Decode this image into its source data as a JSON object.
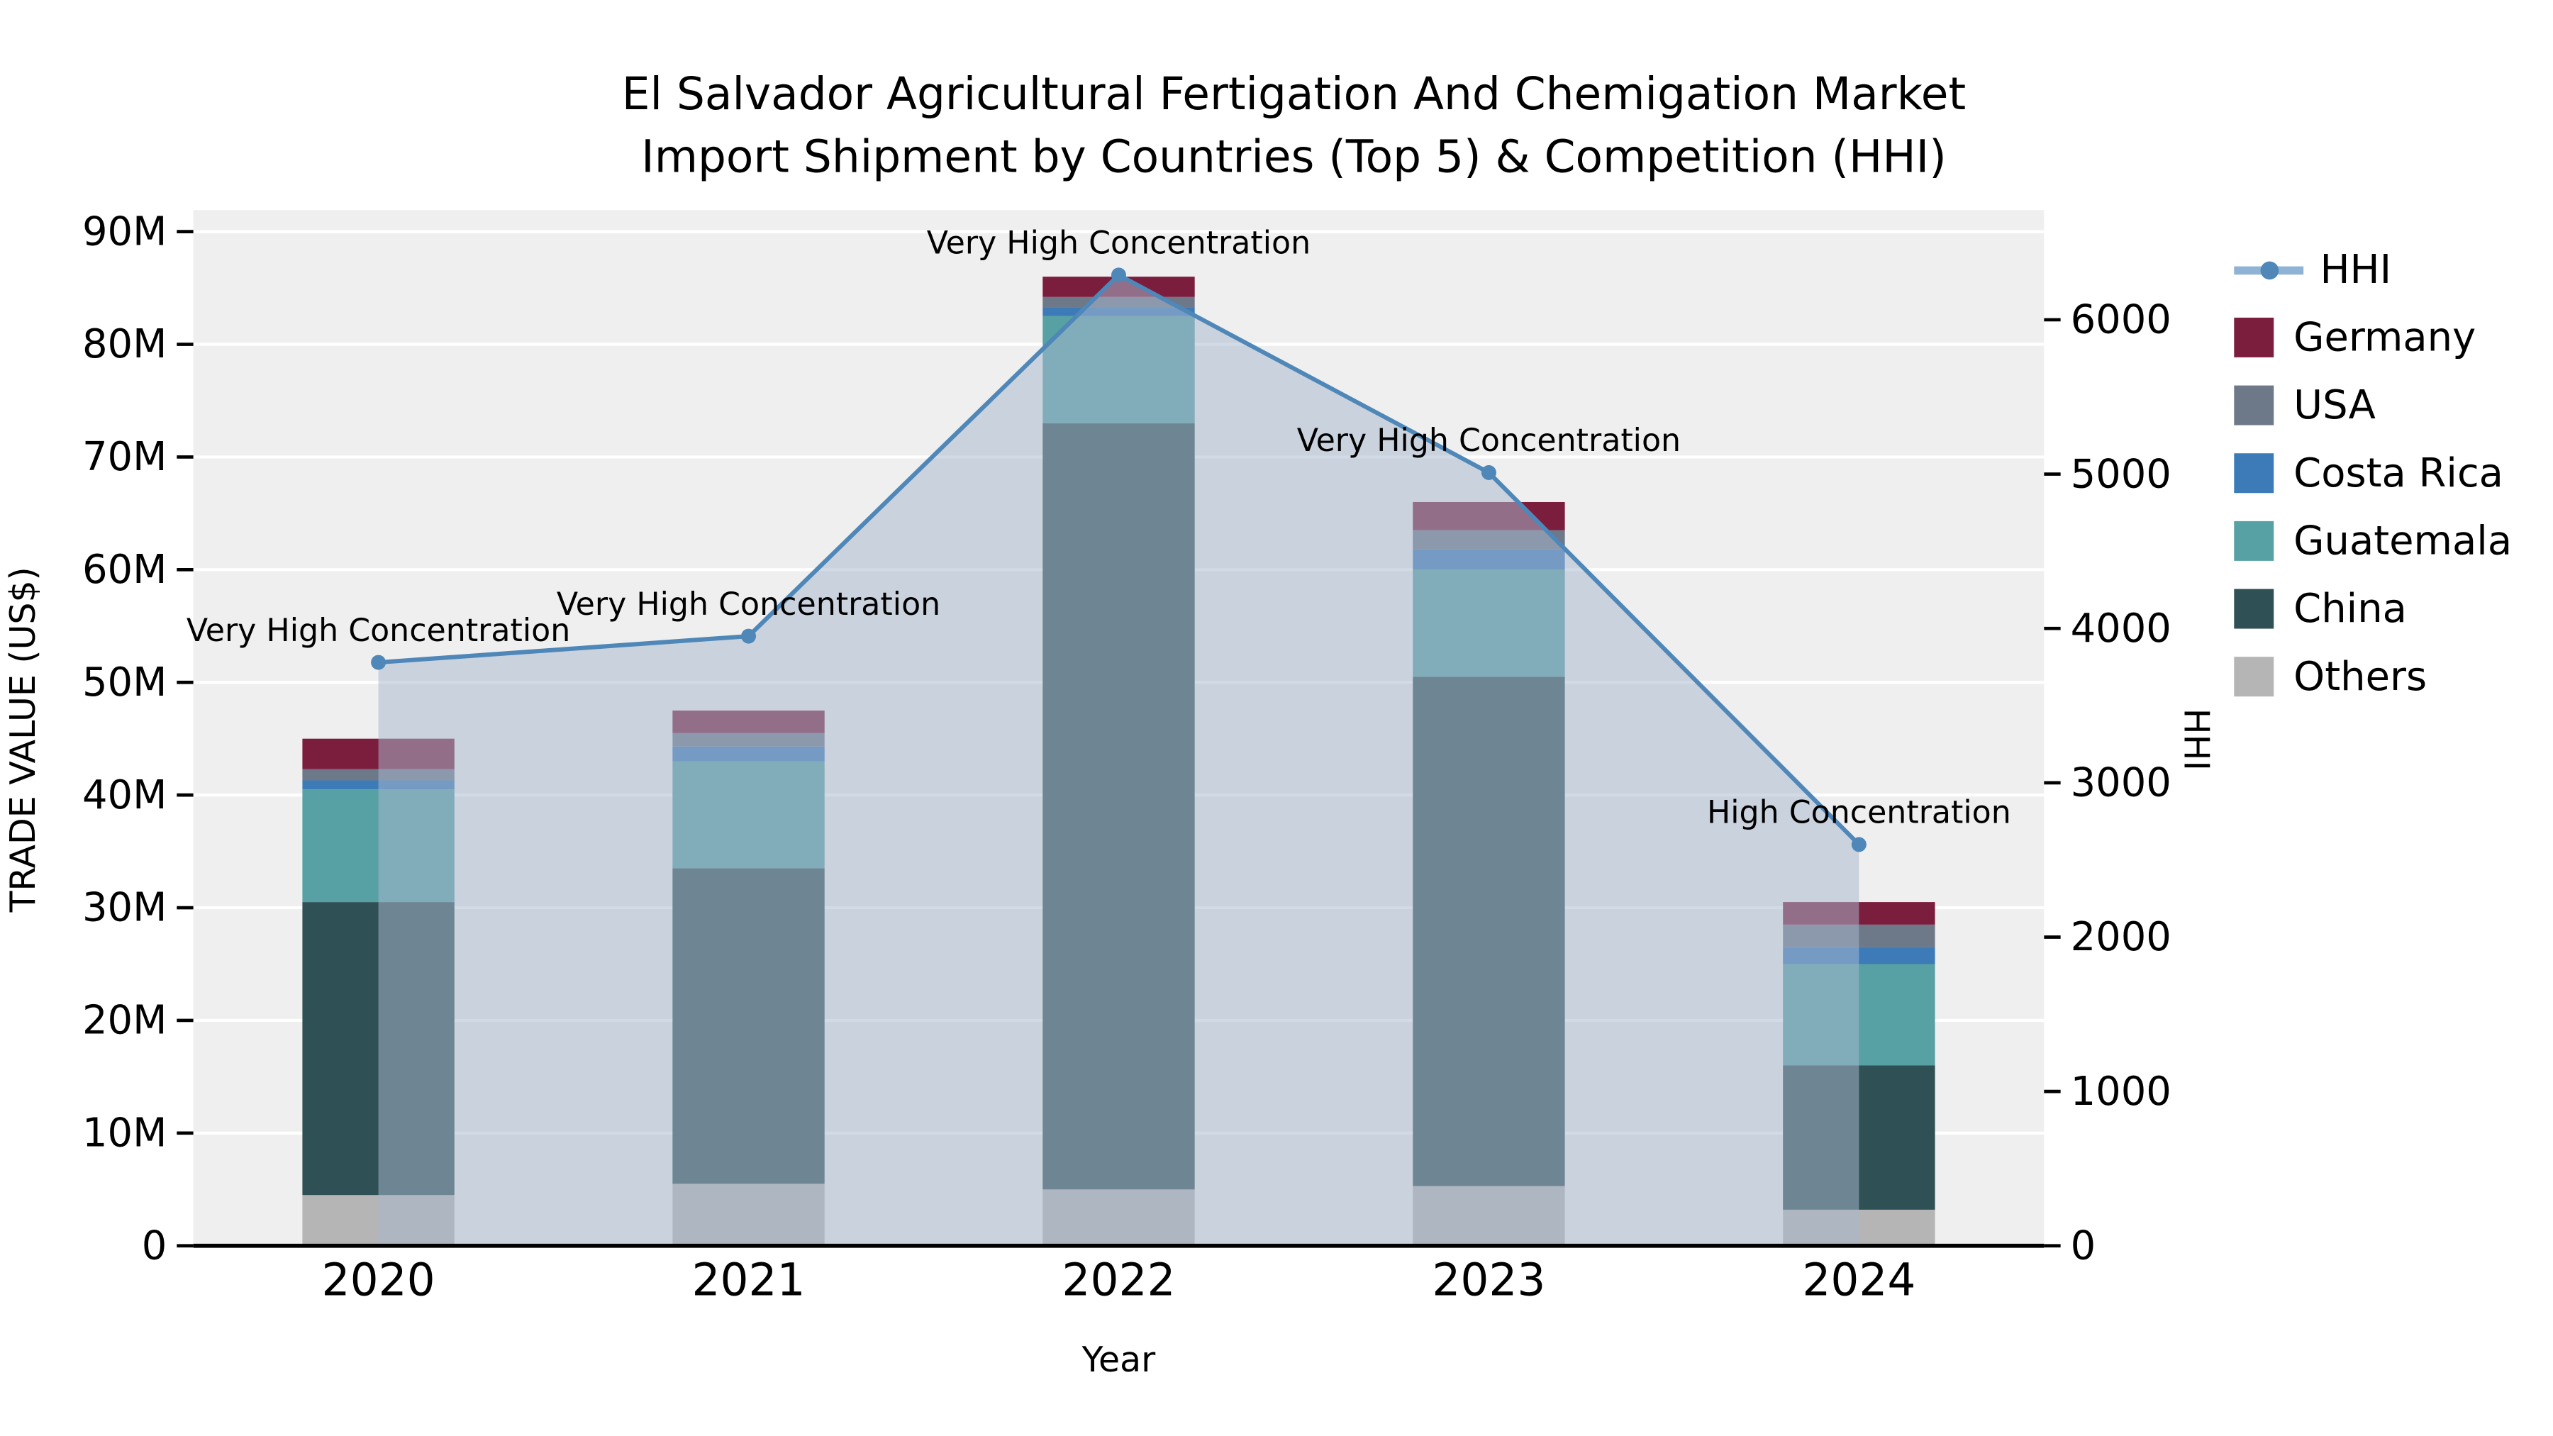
{
  "title": {
    "line1": "El Salvador Agricultural Fertigation And Chemigation Market",
    "line2": "Import Shipment by Countries (Top 5) & Competition (HHI)"
  },
  "axes": {
    "y_left_label": "TRADE VALUE (US$)",
    "y_right_label": "HHI",
    "x_label": "Year"
  },
  "chart_data": {
    "type": "bar",
    "subtype": "stacked-bar-with-line-area-overlay",
    "categories": [
      "2020",
      "2021",
      "2022",
      "2023",
      "2024"
    ],
    "values_unit": "millions USD",
    "y_left": {
      "label": "TRADE VALUE (US$)",
      "max": 90,
      "step": 10,
      "tick_labels": [
        "0",
        "10M",
        "20M",
        "30M",
        "40M",
        "50M",
        "60M",
        "70M",
        "80M",
        "90M"
      ]
    },
    "y_right": {
      "label": "HHI",
      "max": 6000,
      "step": 1000,
      "tick_labels": [
        "0",
        "1000",
        "2000",
        "3000",
        "4000",
        "5000",
        "6000"
      ]
    },
    "series": [
      {
        "name": "Others",
        "color": "#b5b5b5",
        "values": [
          4.5,
          5.5,
          5.0,
          5.3,
          3.2
        ]
      },
      {
        "name": "China",
        "color": "#2f5054",
        "values": [
          26.0,
          28.0,
          68.0,
          45.2,
          12.8
        ]
      },
      {
        "name": "Guatemala",
        "color": "#57a0a3",
        "values": [
          10.0,
          9.5,
          9.5,
          9.5,
          9.0
        ]
      },
      {
        "name": "Costa Rica",
        "color": "#3d7bb8",
        "values": [
          0.8,
          1.3,
          0.8,
          1.8,
          1.5
        ]
      },
      {
        "name": "USA",
        "color": "#6d7889",
        "values": [
          1.0,
          1.2,
          0.9,
          1.7,
          2.0
        ]
      },
      {
        "name": "Germany",
        "color": "#7b1e3e",
        "values": [
          2.7,
          2.0,
          1.8,
          2.5,
          2.0
        ]
      }
    ],
    "bar_totals": [
      45.0,
      47.5,
      86.0,
      66.0,
      30.5
    ],
    "line_series": {
      "name": "HHI",
      "color": "#4e87b8",
      "area_color": "#a9b9cf",
      "values": [
        3780,
        3950,
        6290,
        5010,
        2600
      ]
    },
    "annotations": [
      {
        "year": "2020",
        "text": "Very High Concentration"
      },
      {
        "year": "2021",
        "text": "Very High Concentration"
      },
      {
        "year": "2022",
        "text": "Very High Concentration"
      },
      {
        "year": "2023",
        "text": "Very High Concentration"
      },
      {
        "year": "2024",
        "text": "High Concentration"
      }
    ],
    "legend_position": "right",
    "grid": "horizontal-white-on-gray"
  },
  "legend": {
    "items": [
      {
        "label": "HHI",
        "type": "line",
        "color": "#4e87b8"
      },
      {
        "label": "Germany",
        "type": "square",
        "color": "#7b1e3e"
      },
      {
        "label": "USA",
        "type": "square",
        "color": "#6d7889"
      },
      {
        "label": "Costa Rica",
        "type": "square",
        "color": "#3d7bb8"
      },
      {
        "label": "Guatemala",
        "type": "square",
        "color": "#57a0a3"
      },
      {
        "label": "China",
        "type": "square",
        "color": "#2f5054"
      },
      {
        "label": "Others",
        "type": "square",
        "color": "#b5b5b5"
      }
    ]
  }
}
